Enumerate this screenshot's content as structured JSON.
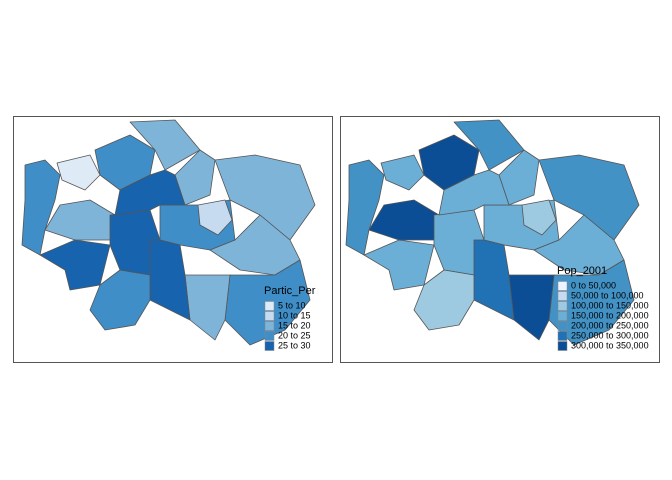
{
  "maps": [
    {
      "legend": {
        "title": "Partic_Per",
        "items": [
          {
            "label": "5 to 10",
            "color": "#deebf7"
          },
          {
            "label": "10 to 15",
            "color": "#c6dbef"
          },
          {
            "label": "15 to 20",
            "color": "#7fb4d9"
          },
          {
            "label": "20 to 25",
            "color": "#3f8ec8"
          },
          {
            "label": "25 to 30",
            "color": "#1763ad"
          }
        ]
      }
    },
    {
      "legend": {
        "title": "Pop_2001",
        "items": [
          {
            "label": "0 to 50,000",
            "color": "#eff3ff"
          },
          {
            "label": "50,000 to 100,000",
            "color": "#c6dbef"
          },
          {
            "label": "100,000 to 150,000",
            "color": "#9ecae1"
          },
          {
            "label": "150,000 to 200,000",
            "color": "#6baed6"
          },
          {
            "label": "200,000 to 250,000",
            "color": "#4292c6"
          },
          {
            "label": "250,000 to 300,000",
            "color": "#2171b5"
          },
          {
            "label": "300,000 to 350,000",
            "color": "#0b4e96"
          }
        ]
      }
    }
  ]
}
